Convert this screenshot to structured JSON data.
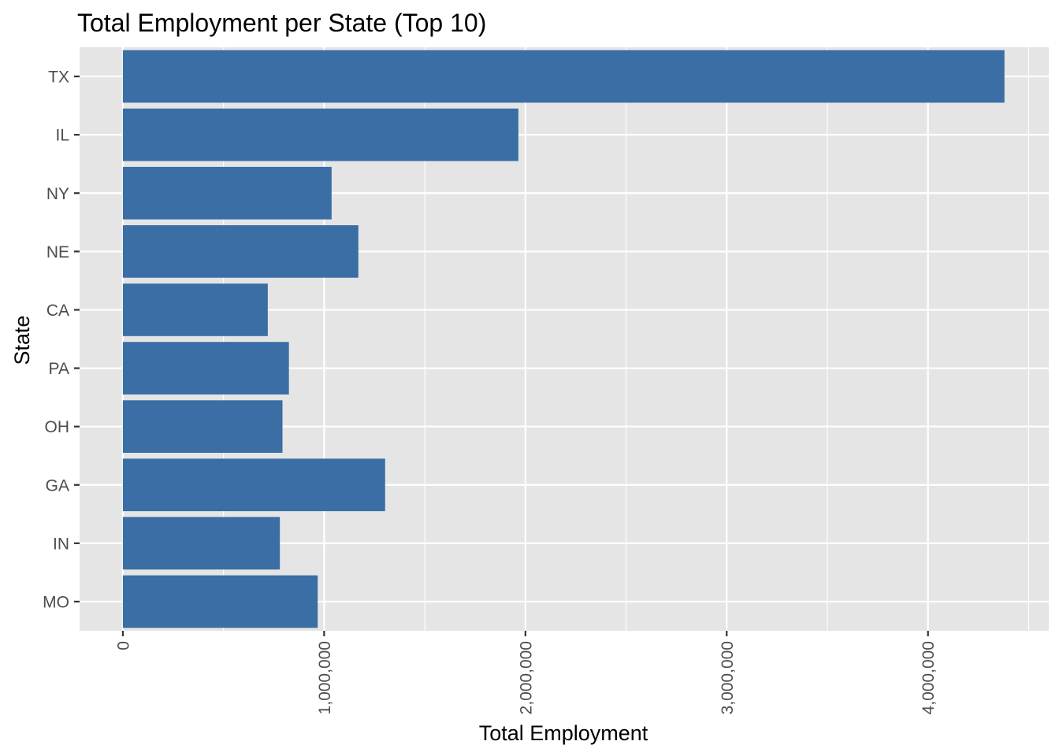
{
  "chart_data": {
    "type": "bar",
    "orientation": "horizontal",
    "title": "Total Employment per State (Top 10)",
    "xlabel": "Total Employment",
    "ylabel": "State",
    "categories": [
      "TX",
      "IL",
      "NY",
      "NE",
      "CA",
      "PA",
      "OH",
      "GA",
      "IN",
      "MO"
    ],
    "values": [
      4380000,
      1965000,
      1037000,
      1170000,
      720000,
      825000,
      793000,
      1303000,
      780000,
      968000
    ],
    "xlim": [
      -215000,
      4600000
    ],
    "x_ticks": [
      0,
      1000000,
      2000000,
      3000000,
      4000000
    ],
    "x_tick_labels": [
      "0",
      "1,000,000",
      "2,000,000",
      "3,000,000",
      "4,000,000"
    ],
    "x_tick_label_rotation": "vertical",
    "grid": true,
    "legend": "none",
    "bar_color": "#3a6ea5",
    "panel_background": "#e5e5e5",
    "gridline_color": "#ffffff"
  }
}
